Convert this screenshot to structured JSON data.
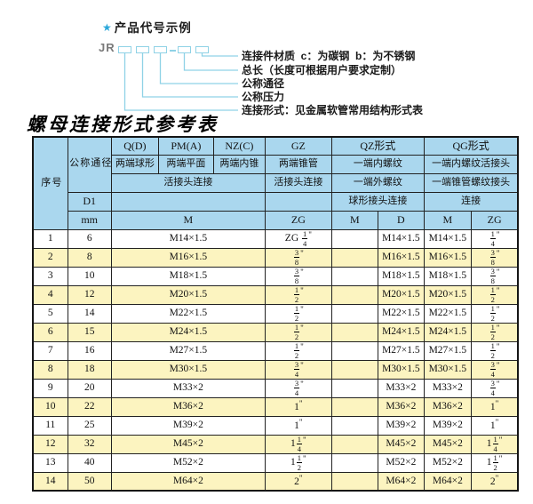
{
  "colors": {
    "header_bg": "#aad7ee",
    "row_alt_bg": "#fcf4c0",
    "diagram_accent": "#8fd2e6",
    "star_color": "#2ba7da",
    "jr_color": "#7a7a7a"
  },
  "diagram": {
    "star_icon": "★",
    "heading": "产品代号示例",
    "prefix": "JR",
    "labels": [
      "连接件材质  c：为碳钢  b：为不锈钢",
      "总长（长度可根据用户要求定制）",
      "公称通径",
      "公称压力",
      "连接形式：见金属软管常用结构形式表"
    ]
  },
  "table": {
    "title": "螺母连接形式参考表",
    "unit_mark": "\"",
    "header": {
      "seq": "序号",
      "dn_vertical": "公称通径",
      "d1": "D1",
      "mm": "mm",
      "q_code": "Q(D)",
      "q_ends": "两端球形",
      "pm_code": "PM(A)",
      "pm_ends": "两端平面",
      "nz_code": "NZ(C)",
      "nz_ends": "两端内锥",
      "gz_code": "GZ",
      "gz_ends": "两端锥管",
      "union_conn": "活接头连接",
      "gz_conn": "活接头连接",
      "qz_code": "QZ形式",
      "qz_row2": "一端内螺纹",
      "qz_row3": "一端外螺纹",
      "qz_row4": "球形接头连接",
      "qg_code": "QG形式",
      "qg_row2": "一端内螺纹活接头",
      "qg_row3": "一端锥管螺纹接头",
      "qg_row4": "连接",
      "m_span": "M",
      "gz_sub": "ZG",
      "qz_sub_m": "M",
      "qz_sub_d": "D",
      "qg_sub_m": "M",
      "qg_sub_zg": "ZG"
    },
    "rows": [
      {
        "no": "1",
        "dn": "6",
        "m": "M14×1.5",
        "gz_zg": {
          "pre": "ZG ",
          "whole": "",
          "num": "1",
          "den": "4"
        },
        "qz_m": "",
        "qz_d": "M14×1.5",
        "qg_m": "M14×1.5",
        "qg_zg": {
          "pre": "",
          "whole": "",
          "num": "1",
          "den": "4"
        }
      },
      {
        "no": "2",
        "dn": "8",
        "m": "M16×1.5",
        "gz_zg": {
          "pre": "",
          "whole": "",
          "num": "3",
          "den": "8"
        },
        "qz_m": "",
        "qz_d": "M16×1.5",
        "qg_m": "M16×1.5",
        "qg_zg": {
          "pre": "",
          "whole": "",
          "num": "3",
          "den": "8"
        }
      },
      {
        "no": "3",
        "dn": "10",
        "m": "M18×1.5",
        "gz_zg": {
          "pre": "",
          "whole": "",
          "num": "3",
          "den": "8"
        },
        "qz_m": "",
        "qz_d": "M18×1.5",
        "qg_m": "M18×1.5",
        "qg_zg": {
          "pre": "",
          "whole": "",
          "num": "3",
          "den": "8"
        }
      },
      {
        "no": "4",
        "dn": "12",
        "m": "M20×1.5",
        "gz_zg": {
          "pre": "",
          "whole": "",
          "num": "1",
          "den": "2"
        },
        "qz_m": "",
        "qz_d": "M20×1.5",
        "qg_m": "M20×1.5",
        "qg_zg": {
          "pre": "",
          "whole": "",
          "num": "1",
          "den": "2"
        }
      },
      {
        "no": "5",
        "dn": "14",
        "m": "M22×1.5",
        "gz_zg": {
          "pre": "",
          "whole": "",
          "num": "1",
          "den": "2"
        },
        "qz_m": "",
        "qz_d": "M22×1.5",
        "qg_m": "M22×1.5",
        "qg_zg": {
          "pre": "",
          "whole": "",
          "num": "1",
          "den": "2"
        }
      },
      {
        "no": "6",
        "dn": "15",
        "m": "M24×1.5",
        "gz_zg": {
          "pre": "",
          "whole": "",
          "num": "1",
          "den": "2"
        },
        "qz_m": "",
        "qz_d": "M24×1.5",
        "qg_m": "M24×1.5",
        "qg_zg": {
          "pre": "",
          "whole": "",
          "num": "1",
          "den": "2"
        }
      },
      {
        "no": "7",
        "dn": "16",
        "m": "M27×1.5",
        "gz_zg": {
          "pre": "",
          "whole": "",
          "num": "1",
          "den": "2"
        },
        "qz_m": "",
        "qz_d": "M27×1.5",
        "qg_m": "M27×1.5",
        "qg_zg": {
          "pre": "",
          "whole": "",
          "num": "1",
          "den": "2"
        }
      },
      {
        "no": "8",
        "dn": "18",
        "m": "M30×1.5",
        "gz_zg": {
          "pre": "",
          "whole": "",
          "num": "3",
          "den": "4"
        },
        "qz_m": "",
        "qz_d": "M30×1.5",
        "qg_m": "M30×1.5",
        "qg_zg": {
          "pre": "",
          "whole": "",
          "num": "3",
          "den": "4"
        }
      },
      {
        "no": "9",
        "dn": "20",
        "m": "M33×2",
        "gz_zg": {
          "pre": "",
          "whole": "",
          "num": "3",
          "den": "4"
        },
        "qz_m": "",
        "qz_d": "M33×2",
        "qg_m": "M33×2",
        "qg_zg": {
          "pre": "",
          "whole": "",
          "num": "3",
          "den": "4"
        }
      },
      {
        "no": "10",
        "dn": "22",
        "m": "M36×2",
        "gz_zg": {
          "pre": "",
          "whole": "1",
          "num": "",
          "den": ""
        },
        "qz_m": "",
        "qz_d": "M36×2",
        "qg_m": "M36×2",
        "qg_zg": {
          "pre": "",
          "whole": "1",
          "num": "",
          "den": ""
        }
      },
      {
        "no": "11",
        "dn": "25",
        "m": "M39×2",
        "gz_zg": {
          "pre": "",
          "whole": "1",
          "num": "",
          "den": ""
        },
        "qz_m": "",
        "qz_d": "M39×2",
        "qg_m": "M39×2",
        "qg_zg": {
          "pre": "",
          "whole": "1",
          "num": "",
          "den": ""
        }
      },
      {
        "no": "12",
        "dn": "32",
        "m": "M45×2",
        "gz_zg": {
          "pre": "",
          "whole": "1",
          "num": "1",
          "den": "4"
        },
        "qz_m": "",
        "qz_d": "M45×2",
        "qg_m": "M45×2",
        "qg_zg": {
          "pre": "",
          "whole": "1",
          "num": "1",
          "den": "4"
        }
      },
      {
        "no": "13",
        "dn": "40",
        "m": "M52×2",
        "gz_zg": {
          "pre": "",
          "whole": "1",
          "num": "1",
          "den": "2"
        },
        "qz_m": "",
        "qz_d": "M52×2",
        "qg_m": "M52×2",
        "qg_zg": {
          "pre": "",
          "whole": "1",
          "num": "1",
          "den": "2"
        }
      },
      {
        "no": "14",
        "dn": "50",
        "m": "M64×2",
        "gz_zg": {
          "pre": "",
          "whole": "2",
          "num": "",
          "den": ""
        },
        "qz_m": "",
        "qz_d": "M64×2",
        "qg_m": "M64×2",
        "qg_zg": {
          "pre": "",
          "whole": "2",
          "num": "",
          "den": ""
        }
      }
    ]
  }
}
